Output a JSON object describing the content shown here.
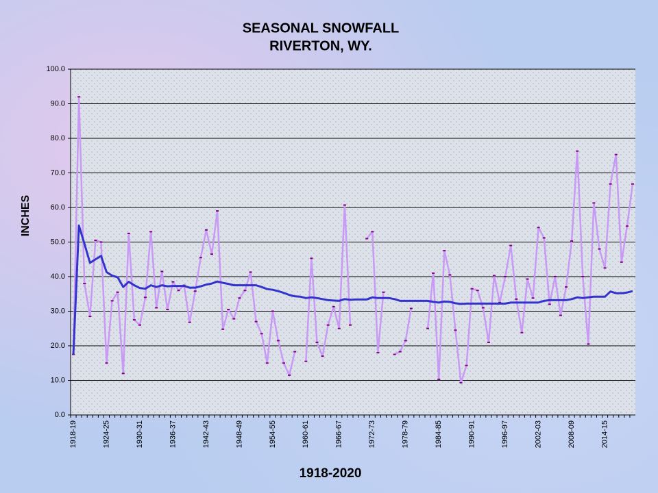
{
  "chart_data": {
    "type": "line",
    "title": "SEASONAL SNOWFALL",
    "subtitle": "RIVERTON, WY.",
    "y_label": "INCHES",
    "x_label": "1918-2020",
    "categories": [
      "1918-19",
      null,
      null,
      null,
      null,
      null,
      "1924-25",
      null,
      null,
      null,
      null,
      null,
      "1930-31",
      null,
      null,
      null,
      null,
      null,
      "1936-37",
      null,
      null,
      null,
      null,
      null,
      "1942-43",
      null,
      null,
      null,
      null,
      null,
      "1948-49",
      null,
      null,
      null,
      null,
      null,
      "1954-55",
      null,
      null,
      null,
      null,
      null,
      "1960-61",
      null,
      null,
      null,
      null,
      null,
      "1966-67",
      null,
      null,
      null,
      null,
      null,
      "1972-73",
      null,
      null,
      null,
      null,
      null,
      "1978-79",
      null,
      null,
      null,
      null,
      null,
      "1984-85",
      null,
      null,
      null,
      null,
      null,
      "1990-91",
      null,
      null,
      null,
      null,
      null,
      "1996-97",
      null,
      null,
      null,
      null,
      null,
      "2002-03",
      null,
      null,
      null,
      null,
      null,
      "2008-09",
      null,
      null,
      null,
      null,
      null,
      "2014-15",
      null,
      null,
      null,
      null,
      null
    ],
    "series": [
      {
        "color": "#c899f5",
        "marker_color": "#800080",
        "values": [
          17.5,
          92,
          38,
          28.5,
          50.5,
          50,
          15,
          33,
          35.5,
          12,
          52.5,
          27.5,
          26,
          34,
          53,
          31,
          41.5,
          30.5,
          38.5,
          36,
          37.5,
          26.8,
          35.8,
          45.5,
          53.5,
          46.5,
          59,
          24.8,
          30.5,
          27.8,
          33.8,
          36,
          41.3,
          27,
          23.5,
          15,
          30,
          21.5,
          15,
          11.5,
          18.3,
          null,
          15.5,
          45.3,
          21,
          17,
          26,
          31.3,
          25,
          60.7,
          26,
          null,
          null,
          51,
          53,
          18,
          35.5,
          null,
          17.5,
          18.3,
          21.5,
          30.8,
          null,
          null,
          25,
          41,
          10.3,
          47.5,
          40.5,
          24.5,
          9.3,
          14.3,
          36.5,
          36,
          31,
          21,
          40.3,
          32.5,
          40,
          49,
          33.5,
          23.8,
          39.3,
          33.8,
          54.2,
          51.2,
          32,
          40,
          28.8,
          37,
          50.3,
          76.3,
          40,
          20.5,
          61.3,
          48,
          42.5,
          66.8,
          75.3,
          44.2,
          54.6,
          66.8
        ]
      },
      {
        "color": "#3333cc",
        "values": [
          17.5,
          54.8,
          49.5,
          44,
          45,
          46,
          41.3,
          40.3,
          39.8,
          37,
          38.5,
          37.5,
          36.7,
          36.5,
          37.5,
          37,
          37.5,
          37.2,
          37.3,
          37.3,
          37.3,
          36.8,
          36.8,
          37.2,
          37.7,
          38,
          38.6,
          38.2,
          37.9,
          37.5,
          37.5,
          37.5,
          37.5,
          37.5,
          37,
          36.4,
          36.2,
          35.8,
          35.3,
          34.7,
          34.3,
          34.2,
          33.8,
          34,
          33.8,
          33.5,
          33.2,
          33.1,
          33,
          33.5,
          33.3,
          33.4,
          33.4,
          33.4,
          34,
          33.8,
          33.8,
          33.8,
          33.5,
          33,
          33,
          33,
          33,
          33,
          33,
          32.7,
          32.5,
          32.8,
          32.7,
          32.3,
          32.1,
          32.2,
          32.2,
          32.2,
          32.2,
          32.2,
          32.2,
          32.2,
          32.2,
          32.5,
          32.5,
          32.5,
          32.5,
          32.5,
          32.5,
          33,
          33.2,
          33.2,
          33.2,
          33.2,
          33.5,
          34,
          33.8,
          34,
          34.2,
          34.2,
          34.2,
          35.7,
          35.2,
          35.2,
          35.4,
          35.8
        ]
      }
    ],
    "ylim": [
      0,
      100
    ],
    "yticks": [
      {
        "value": 0,
        "label": "0.0"
      },
      {
        "value": 10,
        "label": "10.0"
      },
      {
        "value": 20,
        "label": "20.0"
      },
      {
        "value": 30,
        "label": "30.0"
      },
      {
        "value": 40,
        "label": "40.0"
      },
      {
        "value": 50,
        "label": "50.0"
      },
      {
        "value": 60,
        "label": "60.0"
      },
      {
        "value": 70,
        "label": "70.0"
      },
      {
        "value": 80,
        "label": "80.0"
      },
      {
        "value": 90,
        "label": "90.0"
      },
      {
        "value": 100,
        "label": "100.0"
      }
    ],
    "grid": true
  }
}
